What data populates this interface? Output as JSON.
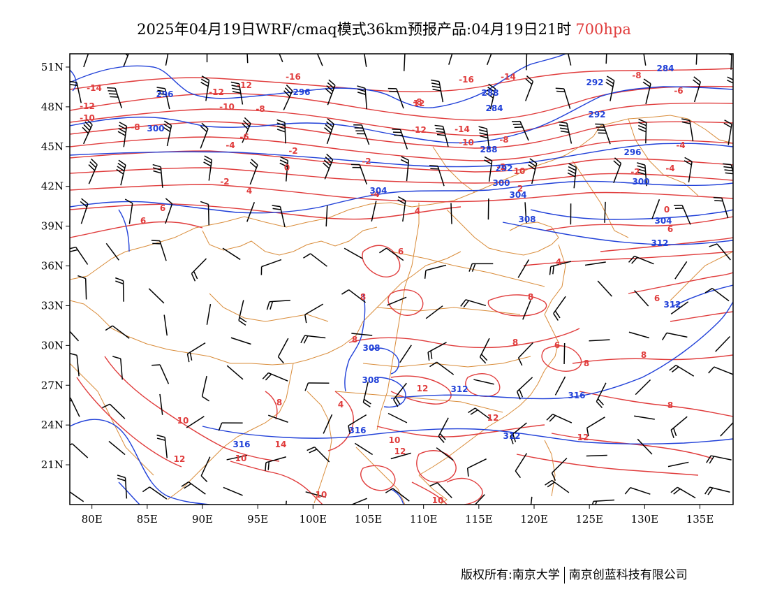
{
  "title": {
    "main": "2025年04月19日WRF/cmaq模式36km预报产品:04月19日21时",
    "level": "700hpa",
    "level_color": "#e03c3c"
  },
  "map": {
    "lon_range": [
      78,
      138
    ],
    "lat_range": [
      18,
      52
    ],
    "lon_ticks": [
      "80E",
      "85E",
      "90E",
      "95E",
      "100E",
      "105E",
      "110E",
      "115E",
      "120E",
      "125E",
      "130E",
      "135E"
    ],
    "lat_ticks": [
      "51N",
      "48N",
      "45N",
      "42N",
      "39N",
      "36N",
      "33N",
      "30N",
      "27N",
      "24N",
      "21N"
    ],
    "colors": {
      "temperature": "#e03c3c",
      "geopotential": "#2040d8",
      "boundary": "#d98c3a",
      "wind": "#000000"
    },
    "temperature_labels": [
      "-14",
      "-12",
      "-10",
      "-16",
      "-12",
      "-12",
      "-16",
      "-14",
      "-10",
      "-8",
      "-8",
      "-8",
      "-12",
      "-14",
      "-10",
      "-8",
      "-8",
      "-6",
      "-6",
      "-4",
      "-4",
      "-2",
      "-2",
      "-2",
      "0",
      "-2",
      "-4",
      "-2",
      "2",
      "4",
      "-4",
      "0",
      "4",
      "6",
      "6",
      "6",
      "4",
      "8",
      "6",
      "8",
      "8",
      "8",
      "8",
      "8",
      "6",
      "8",
      "4",
      "8",
      "10",
      "10",
      "12",
      "12",
      "12",
      "12",
      "12",
      "10",
      "14",
      "10",
      "10",
      "6",
      "10",
      "12"
    ],
    "geopotential_labels": [
      "296",
      "296",
      "300",
      "284",
      "288",
      "292",
      "284",
      "288",
      "292",
      "296",
      "292",
      "300",
      "300",
      "304",
      "304",
      "304",
      "308",
      "308",
      "308",
      "312",
      "312",
      "312",
      "316",
      "316",
      "316",
      "312"
    ]
  },
  "footer": {
    "copyright": "版权所有:南京大学",
    "company": "南京创蓝科技有限公司"
  }
}
